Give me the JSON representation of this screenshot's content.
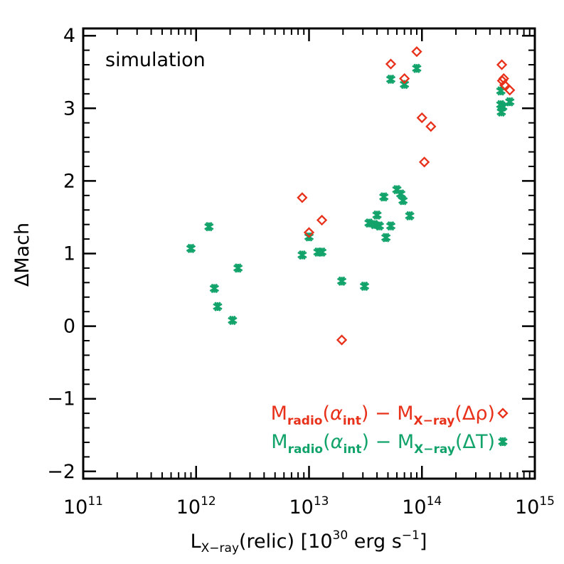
{
  "chart_data": {
    "type": "scatter",
    "title": "",
    "annotation": "simulation",
    "xlabel": {
      "main": "L",
      "sub": "X−ray",
      "rest": "(relic) [10",
      "sup": "30",
      "units": " erg s",
      "units_sup": "−1",
      "close": "]"
    },
    "ylabel": "ΔMach",
    "x_scale": "log",
    "xlim": [
      100000000000.0,
      1000000000000000.0
    ],
    "ylim": [
      -2.1,
      4.1
    ],
    "x_ticks": [
      {
        "value": 100000000000.0,
        "base": "10",
        "exp": "11"
      },
      {
        "value": 1000000000000.0,
        "base": "10",
        "exp": "12"
      },
      {
        "value": 10000000000000.0,
        "base": "10",
        "exp": "13"
      },
      {
        "value": 100000000000000.0,
        "base": "10",
        "exp": "14"
      },
      {
        "value": 1000000000000000.0,
        "base": "10",
        "exp": "15"
      }
    ],
    "y_ticks": [
      {
        "value": -2,
        "label": "−2"
      },
      {
        "value": -1,
        "label": "−1"
      },
      {
        "value": 0,
        "label": "0"
      },
      {
        "value": 1,
        "label": "1"
      },
      {
        "value": 2,
        "label": "2"
      },
      {
        "value": 3,
        "label": "3"
      },
      {
        "value": 4,
        "label": "4"
      }
    ],
    "legend_position": "bottom-right",
    "series": [
      {
        "name": "M_radio(alpha_int) - M_X-ray(Delta rho)",
        "legend": {
          "m1": "M",
          "m1_sub": "radio",
          "alpha": "α",
          "alpha_sub": "int",
          "minus": "−",
          "m2": "M",
          "m2_sub": "X−ray",
          "delta": "Δρ"
        },
        "marker": "diamond",
        "color": "#e8311a",
        "points": [
          {
            "x": 8700000000000.0,
            "y": 1.77
          },
          {
            "x": 10000000000000.0,
            "y": 1.29
          },
          {
            "x": 13000000000000.0,
            "y": 1.46
          },
          {
            "x": 19500000000000.0,
            "y": -0.19
          },
          {
            "x": 53000000000000.0,
            "y": 3.61
          },
          {
            "x": 70000000000000.0,
            "y": 3.41
          },
          {
            "x": 90000000000000.0,
            "y": 3.78
          },
          {
            "x": 100000000000000.0,
            "y": 2.87
          },
          {
            "x": 105000000000000.0,
            "y": 2.26
          },
          {
            "x": 120000000000000.0,
            "y": 2.75
          },
          {
            "x": 510000000000000.0,
            "y": 3.6
          },
          {
            "x": 515000000000000.0,
            "y": 3.38
          },
          {
            "x": 530000000000000.0,
            "y": 3.41
          },
          {
            "x": 540000000000000.0,
            "y": 3.32
          },
          {
            "x": 600000000000000.0,
            "y": 3.25
          }
        ]
      },
      {
        "name": "M_radio(alpha_int) - M_X-ray(Delta T)",
        "legend": {
          "m1": "M",
          "m1_sub": "radio",
          "alpha": "α",
          "alpha_sub": "int",
          "minus": "−",
          "m2": "M",
          "m2_sub": "X−ray",
          "delta": "ΔT"
        },
        "marker": "asterisk",
        "color": "#12a36b",
        "points": [
          {
            "x": 900000000000.0,
            "y": 1.07
          },
          {
            "x": 1300000000000.0,
            "y": 1.37
          },
          {
            "x": 1450000000000.0,
            "y": 0.52
          },
          {
            "x": 1550000000000.0,
            "y": 0.27
          },
          {
            "x": 2100000000000.0,
            "y": 0.08
          },
          {
            "x": 2350000000000.0,
            "y": 0.8
          },
          {
            "x": 8700000000000.0,
            "y": 0.98
          },
          {
            "x": 10000000000000.0,
            "y": 1.23
          },
          {
            "x": 12000000000000.0,
            "y": 1.02
          },
          {
            "x": 13000000000000.0,
            "y": 1.02
          },
          {
            "x": 19500000000000.0,
            "y": 0.62
          },
          {
            "x": 31000000000000.0,
            "y": 0.55
          },
          {
            "x": 34000000000000.0,
            "y": 1.42
          },
          {
            "x": 38000000000000.0,
            "y": 1.4
          },
          {
            "x": 40000000000000.0,
            "y": 1.53
          },
          {
            "x": 42000000000000.0,
            "y": 1.38
          },
          {
            "x": 46000000000000.0,
            "y": 1.78
          },
          {
            "x": 48000000000000.0,
            "y": 1.22
          },
          {
            "x": 53000000000000.0,
            "y": 1.38
          },
          {
            "x": 53000000000000.0,
            "y": 3.4
          },
          {
            "x": 60000000000000.0,
            "y": 1.88
          },
          {
            "x": 65000000000000.0,
            "y": 1.82
          },
          {
            "x": 68000000000000.0,
            "y": 1.73
          },
          {
            "x": 70000000000000.0,
            "y": 3.33
          },
          {
            "x": 78000000000000.0,
            "y": 1.52
          },
          {
            "x": 90000000000000.0,
            "y": 3.55
          },
          {
            "x": 500000000000000.0,
            "y": 3.24
          },
          {
            "x": 500000000000000.0,
            "y": 3.05
          },
          {
            "x": 505000000000000.0,
            "y": 2.95
          },
          {
            "x": 520000000000000.0,
            "y": 3.02
          },
          {
            "x": 600000000000000.0,
            "y": 3.09
          }
        ]
      }
    ]
  }
}
